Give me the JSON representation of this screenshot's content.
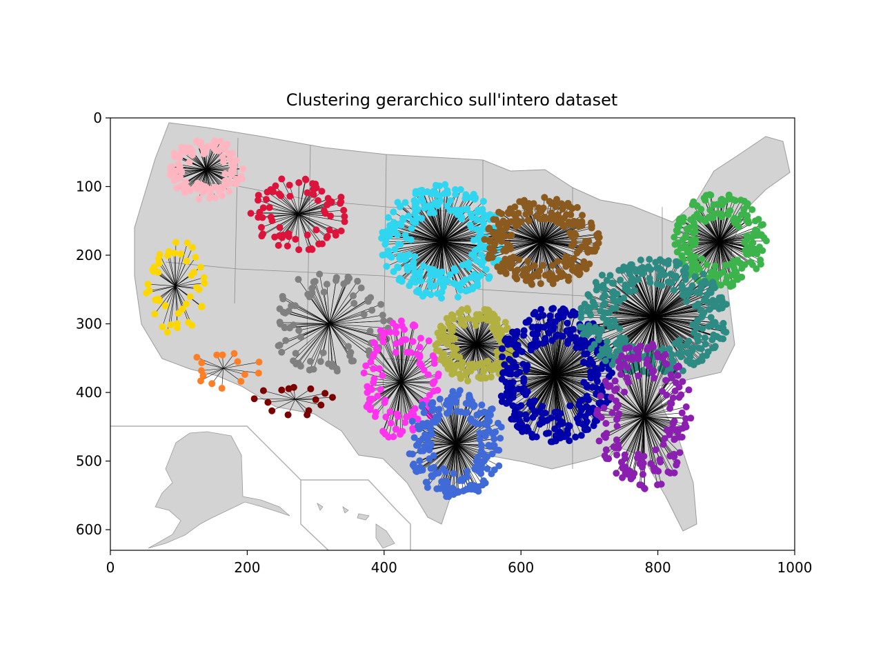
{
  "chart_data": {
    "type": "scatter",
    "title": "Clustering gerarchico sull'intero dataset",
    "xlabel": "",
    "ylabel": "",
    "xlim": [
      0,
      1000
    ],
    "ylim": [
      630,
      0
    ],
    "y_axis_inverted": true,
    "grid": false,
    "legend": "none",
    "background": "map of the United States (grey states and counties, Alaska and Hawaii insets at lower left)",
    "x_ticks": [
      "0",
      "200",
      "400",
      "600",
      "800",
      "1000"
    ],
    "y_ticks": [
      "0",
      "100",
      "200",
      "300",
      "400",
      "500",
      "600"
    ],
    "x_tick_values": [
      0,
      200,
      400,
      600,
      800,
      1000
    ],
    "y_tick_values": [
      0,
      100,
      200,
      300,
      400,
      500,
      600
    ],
    "clusters": [
      {
        "color": "#ffb6c1",
        "center": [
          140,
          75
        ],
        "spread": [
          55,
          45
        ],
        "points": 110
      },
      {
        "color": "#dc143c",
        "center": [
          275,
          140
        ],
        "spread": [
          70,
          55
        ],
        "points": 70
      },
      {
        "color": "#30d5f0",
        "center": [
          485,
          180
        ],
        "spread": [
          90,
          85
        ],
        "points": 260
      },
      {
        "color": "#8b5a1e",
        "center": [
          630,
          180
        ],
        "spread": [
          85,
          65
        ],
        "points": 220
      },
      {
        "color": "#3cb44b",
        "center": [
          890,
          180
        ],
        "spread": [
          70,
          70
        ],
        "points": 200
      },
      {
        "color": "#ffd700",
        "center": [
          95,
          245
        ],
        "spread": [
          45,
          70
        ],
        "points": 45
      },
      {
        "color": "#808080",
        "center": [
          320,
          300
        ],
        "spread": [
          90,
          75
        ],
        "points": 80
      },
      {
        "color": "#ff33ee",
        "center": [
          425,
          385
        ],
        "spread": [
          55,
          90
        ],
        "points": 110
      },
      {
        "color": "#b2b040",
        "center": [
          535,
          330
        ],
        "spread": [
          60,
          55
        ],
        "points": 170
      },
      {
        "color": "#0000aa",
        "center": [
          650,
          375
        ],
        "spread": [
          85,
          100
        ],
        "points": 330
      },
      {
        "color": "#2d8b83",
        "center": [
          795,
          290
        ],
        "spread": [
          110,
          85
        ],
        "points": 330
      },
      {
        "color": "#ff7f27",
        "center": [
          165,
          365
        ],
        "spread": [
          55,
          30
        ],
        "points": 15
      },
      {
        "color": "#7b0000",
        "center": [
          270,
          410
        ],
        "spread": [
          60,
          25
        ],
        "points": 15
      },
      {
        "color": "#3f6ad8",
        "center": [
          505,
          475
        ],
        "spread": [
          70,
          80
        ],
        "points": 190
      },
      {
        "color": "#8a1fb0",
        "center": [
          780,
          435
        ],
        "spread": [
          70,
          110
        ],
        "points": 160
      }
    ]
  }
}
